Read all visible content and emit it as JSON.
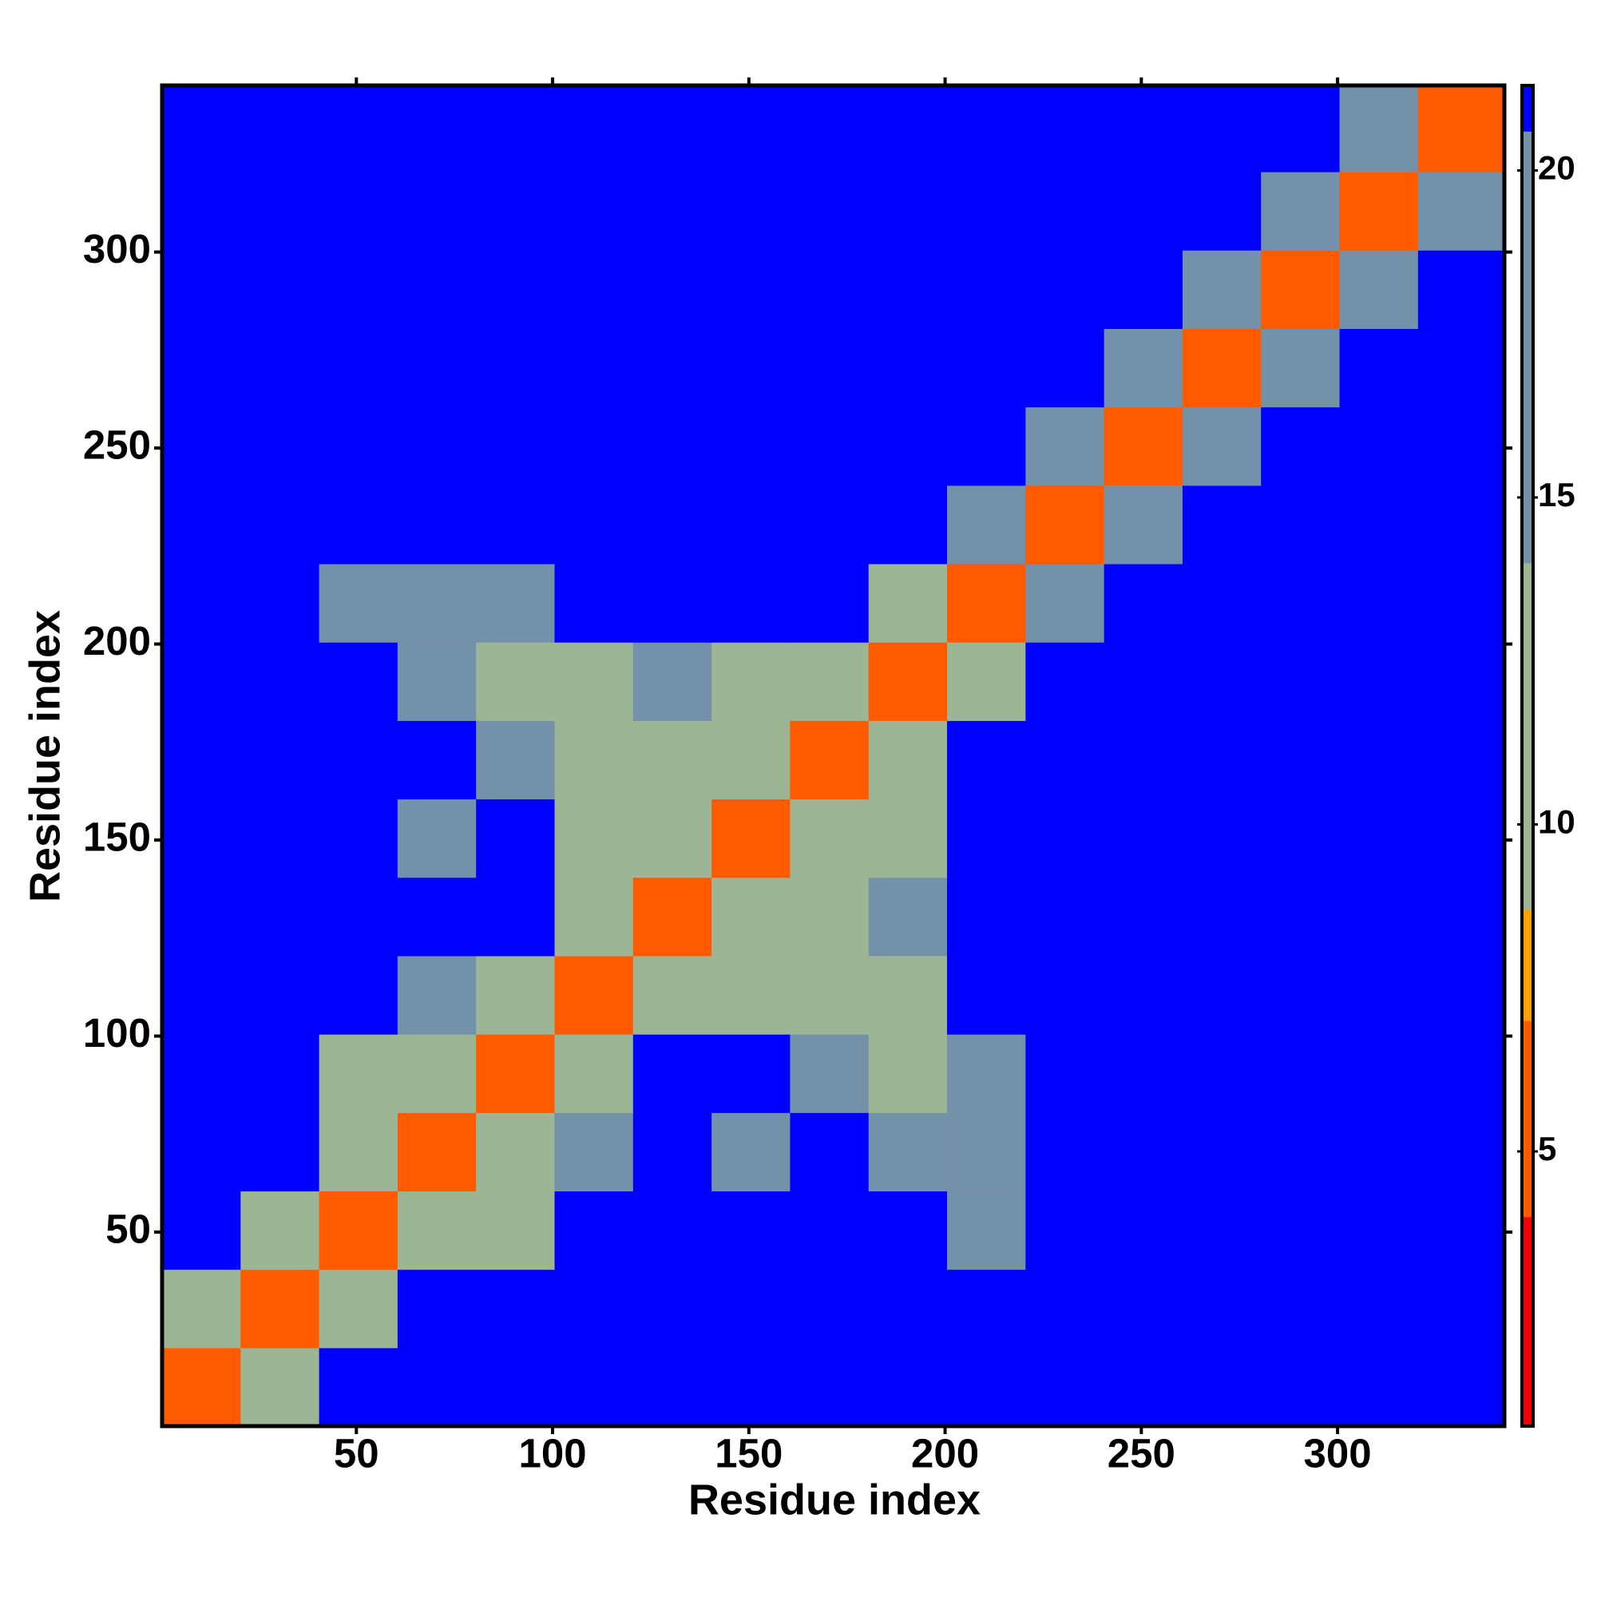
{
  "chart_data": {
    "type": "heatmap",
    "x_label": "Residue index",
    "y_label": "Residue index",
    "xlim": [
      0.5,
      342.5
    ],
    "ylim": [
      0.5,
      342.5
    ],
    "xticks": [
      50,
      100,
      150,
      200,
      250,
      300
    ],
    "yticks": [
      50,
      100,
      150,
      200,
      250,
      300
    ],
    "x_bins": [
      0.5,
      20.5,
      40.5,
      60.5,
      80.5,
      100.5,
      120.5,
      140.5,
      160.5,
      180.5,
      200.5,
      220.5,
      240.5,
      260.5,
      280.5,
      300.5,
      320.5,
      342.5
    ],
    "y_bins": [
      0.5,
      20.5,
      40.5,
      60.5,
      80.5,
      100.5,
      120.5,
      140.5,
      160.5,
      180.5,
      200.5,
      220.5,
      240.5,
      260.5,
      280.5,
      300.5,
      320.5,
      342.5
    ],
    "z": [
      [
        5,
        12,
        21,
        21,
        21,
        21,
        21,
        21,
        21,
        21,
        21,
        21,
        21,
        21,
        21,
        21,
        21
      ],
      [
        12,
        6,
        14,
        21,
        21,
        21,
        21,
        21,
        21,
        21,
        21,
        21,
        21,
        21,
        21,
        21,
        21
      ],
      [
        21,
        14,
        6,
        13,
        14,
        21,
        21,
        21,
        21,
        21,
        18,
        21,
        21,
        21,
        21,
        21,
        21
      ],
      [
        21,
        21,
        13,
        6,
        11,
        17,
        21,
        17,
        21,
        16,
        17,
        21,
        21,
        21,
        21,
        21,
        21
      ],
      [
        21,
        21,
        14,
        11,
        6,
        14,
        21,
        21,
        15,
        13,
        17,
        21,
        21,
        21,
        21,
        21,
        21
      ],
      [
        21,
        21,
        21,
        17,
        14,
        6,
        14,
        13,
        12,
        12,
        21,
        21,
        21,
        21,
        21,
        21,
        21
      ],
      [
        21,
        21,
        21,
        21,
        21,
        14,
        6,
        11,
        13,
        16,
        21,
        21,
        21,
        21,
        21,
        21,
        21
      ],
      [
        21,
        21,
        21,
        17,
        21,
        13,
        11,
        6,
        11,
        14,
        21,
        21,
        21,
        21,
        21,
        21,
        21
      ],
      [
        21,
        21,
        21,
        21,
        15,
        12,
        13,
        11,
        6,
        12,
        21,
        21,
        21,
        21,
        21,
        21,
        21
      ],
      [
        21,
        21,
        21,
        16,
        13,
        12,
        16,
        14,
        12,
        6,
        13,
        21,
        21,
        21,
        21,
        21,
        21
      ],
      [
        21,
        21,
        18,
        17,
        17,
        21,
        21,
        21,
        21,
        13,
        6,
        15,
        21,
        21,
        21,
        21,
        21
      ],
      [
        21,
        21,
        21,
        21,
        21,
        21,
        21,
        21,
        21,
        21,
        15,
        6,
        15,
        21,
        21,
        21,
        21
      ],
      [
        21,
        21,
        21,
        21,
        21,
        21,
        21,
        21,
        21,
        21,
        21,
        15,
        6,
        15,
        21,
        21,
        21
      ],
      [
        21,
        21,
        21,
        21,
        21,
        21,
        21,
        21,
        21,
        21,
        21,
        21,
        15,
        6,
        15,
        21,
        21
      ],
      [
        21,
        21,
        21,
        21,
        21,
        21,
        21,
        21,
        21,
        21,
        21,
        21,
        21,
        15,
        6,
        15,
        21
      ],
      [
        21,
        21,
        21,
        21,
        21,
        21,
        21,
        21,
        21,
        21,
        21,
        21,
        21,
        21,
        15,
        6,
        15
      ],
      [
        21,
        21,
        21,
        21,
        21,
        21,
        21,
        21,
        21,
        21,
        21,
        21,
        21,
        21,
        21,
        15,
        6
      ]
    ],
    "colorbar": {
      "lim": [
        0.8,
        21.3
      ],
      "ticks": [
        5,
        10,
        15,
        20
      ],
      "steps": [
        {
          "upto": 4,
          "color": "#f00000"
        },
        {
          "upto": 7,
          "color": "#ff5a00"
        },
        {
          "upto": 8.7,
          "color": "#ffa000"
        },
        {
          "upto": 14,
          "color": "#9cb594"
        },
        {
          "upto": 20.6,
          "color": "#7391a8"
        },
        {
          "upto": 21.3,
          "color": "#0000ff"
        }
      ]
    }
  }
}
